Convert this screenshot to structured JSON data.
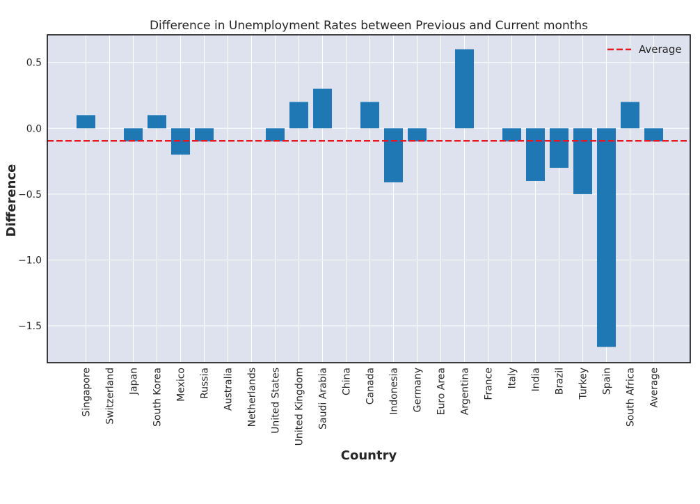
{
  "chart_data": {
    "type": "bar",
    "title": "Difference  in Unemployment Rates between Previous and Current months",
    "xlabel": "Country",
    "ylabel": "Difference",
    "categories": [
      "Singapore",
      "Switzerland",
      "Japan",
      "South Korea",
      "Mexico",
      "Russia",
      "Australia",
      "Netherlands",
      "United States",
      "United Kingdom",
      "Saudi Arabia",
      "China",
      "Canada",
      "Indonesia",
      "Germany",
      "Euro Area",
      "Argentina",
      "France",
      "Italy",
      "India",
      "Brazil",
      "Turkey",
      "Spain",
      "South Africa",
      "Average"
    ],
    "values": [
      0.1,
      0,
      -0.1,
      0.1,
      -0.2,
      -0.1,
      0,
      0,
      -0.1,
      0.2,
      0.3,
      0,
      0.2,
      -0.41,
      -0.1,
      0,
      0.6,
      0,
      -0.1,
      -0.4,
      -0.3,
      -0.5,
      -1.66,
      0.2,
      -0.1
    ],
    "average_line": {
      "value": -0.095,
      "label": "Average",
      "color": "#e8171f",
      "style": "dashed"
    },
    "ylim": [
      -1.78,
      0.71
    ],
    "yticks": [
      0.5,
      0.0,
      -0.5,
      -1.0,
      -1.5
    ],
    "ytick_labels": [
      "0.5",
      "0.0",
      "−0.5",
      "−1.0",
      "−1.5"
    ],
    "bar_color": "#1f77b4",
    "background_color": "#dde2ee",
    "grid": true,
    "legend_position": "top-right"
  }
}
